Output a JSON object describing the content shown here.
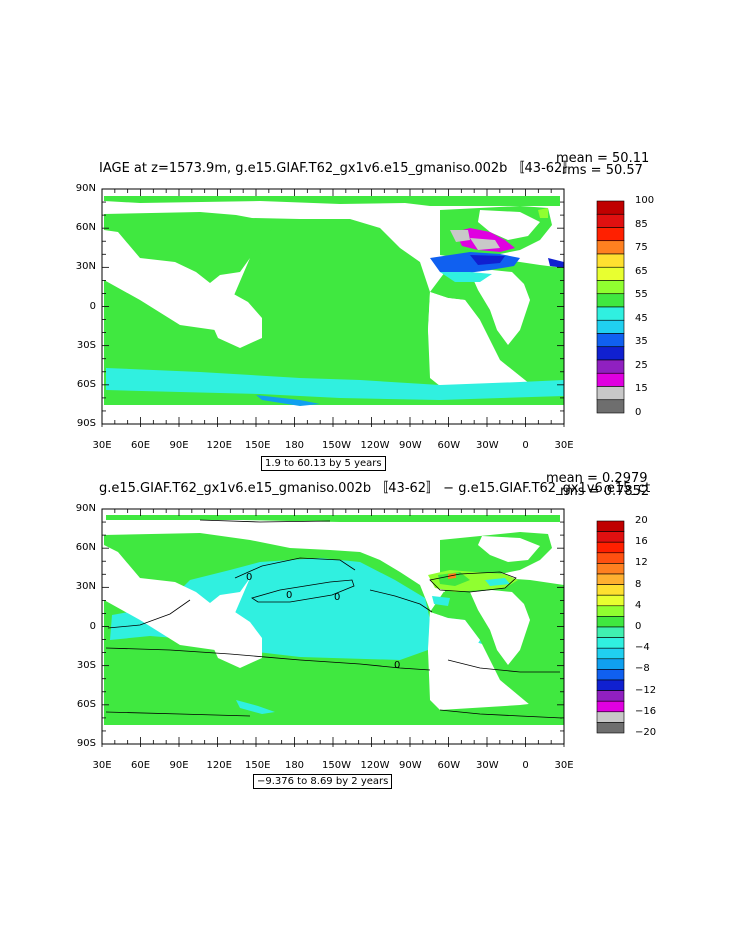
{
  "panel1": {
    "title": "IAGE at z=1573.9m, g.e15.GIAF.T62_gx1v6.e15_gmaniso.002b 〚43-62〛",
    "mean_label": "mean = 50.11",
    "rms_label": "rms = 50.57",
    "range_label": "1.9 to 60.13 by 5 years"
  },
  "panel2": {
    "title": "g.e15.GIAF.T62_gx1v6.e15_gmaniso.002b 〚43-62〛 − g.e15.GIAF.T62_gx1v6.e15_ct",
    "mean_label": "mean = 0.2979",
    "rms_label": "rms = 0.7852",
    "range_label": "−9.376 to 8.69 by 2 years",
    "contour_labels": [
      "0",
      "0",
      "0",
      "0"
    ]
  },
  "lat_ticks": [
    "90N",
    "60N",
    "30N",
    "0",
    "30S",
    "60S",
    "90S"
  ],
  "lon_ticks": [
    "30E",
    "60E",
    "90E",
    "120E",
    "150E",
    "180",
    "150W",
    "120W",
    "90W",
    "60W",
    "30W",
    "0",
    "30E"
  ],
  "colorbar1_labels": [
    "100",
    "85",
    "75",
    "65",
    "55",
    "45",
    "35",
    "25",
    "15",
    "0"
  ],
  "colorbar2_labels": [
    "20",
    "16",
    "12",
    "8",
    "4",
    "0",
    "−4",
    "−8",
    "−12",
    "−16",
    "−20"
  ],
  "palette": [
    "#6e6e6e",
    "#c8c8c8",
    "#e000e0",
    "#9020c0",
    "#1020d0",
    "#1060f0",
    "#10a0f0",
    "#20d0f0",
    "#30f0e0",
    "#40f0b0",
    "#40e840",
    "#90ff30",
    "#e8ff30",
    "#ffe030",
    "#ffb030",
    "#ff8020",
    "#ff5010",
    "#ff2000",
    "#e01010",
    "#c00000"
  ],
  "chart_data": [
    {
      "type": "heatmap",
      "title": "IAGE at z=1573.9m, g.e15.GIAF.T62_gx1v6.e15_gmaniso.002b 〚43-62〛",
      "annotations": [
        "mean = 50.11",
        "rms = 50.57",
        "1.9 to 60.13 by 5 years"
      ],
      "x_tick_labels": [
        "30E",
        "60E",
        "90E",
        "120E",
        "150E",
        "180",
        "150W",
        "120W",
        "90W",
        "60W",
        "30W",
        "0",
        "30E"
      ],
      "y_tick_labels": [
        "90N",
        "60N",
        "30N",
        "0",
        "30S",
        "60S",
        "90S"
      ],
      "colorbar_labels": [
        "100",
        "85",
        "75",
        "65",
        "55",
        "45",
        "35",
        "25",
        "15",
        "0"
      ],
      "color_levels": 14
    },
    {
      "type": "heatmap",
      "title": "g.e15.GIAF.T62_gx1v6.e15_gmaniso.002b 〚43-62〛 − g.e15.GIAF.T62_gx1v6.e15_ct",
      "annotations": [
        "mean = 0.2979",
        "rms = 0.7852",
        "−9.376 to 8.69 by 2 years"
      ],
      "x_tick_labels": [
        "30E",
        "60E",
        "90E",
        "120E",
        "150E",
        "180",
        "150W",
        "120W",
        "90W",
        "60W",
        "30W",
        "0",
        "30E"
      ],
      "y_tick_labels": [
        "90N",
        "60N",
        "30N",
        "0",
        "30S",
        "60S",
        "90S"
      ],
      "colorbar_labels": [
        "20",
        "16",
        "12",
        "8",
        "4",
        "0",
        "−4",
        "−8",
        "−12",
        "−16",
        "−20"
      ],
      "contour_values": [
        0
      ],
      "color_levels": 20
    }
  ]
}
